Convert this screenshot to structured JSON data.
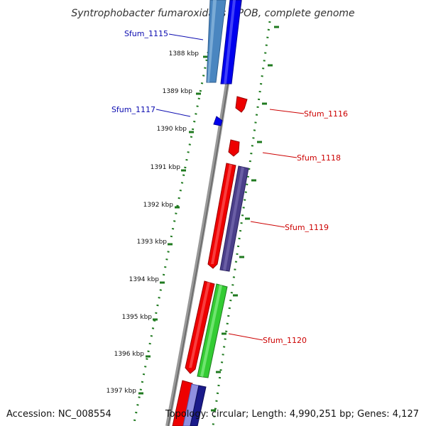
{
  "title": "Syntrophobacter fumaroxidans MPOB, complete genome",
  "footer": {
    "accession": "Accession: NC_008554",
    "summary": "Topology: circular; Length: 4,990,251 bp; Genes: 4,127"
  },
  "colors": {
    "backbone": "#888888",
    "ticks": "#1f7a1f",
    "label_forward": "#0b0bb0",
    "label_reverse": "#cc0000",
    "gene_red": "#ee0000",
    "gene_blue": "#0000ee",
    "gene_steelblue": "#4a86c0",
    "gene_slate": "#4b3f8a",
    "gene_green": "#33cc33",
    "gene_navy": "#1a1a8a"
  },
  "chart_data": {
    "type": "genome-map",
    "kbp_labels": [
      "1388 kbp",
      "1389 kbp",
      "1390 kbp",
      "1391 kbp",
      "1392 kbp",
      "1393 kbp",
      "1394 kbp",
      "1395 kbp",
      "1396 kbp",
      "1397 kbp"
    ],
    "gene_labels": [
      {
        "name": "Sfum_1115",
        "strand": "forward"
      },
      {
        "name": "Sfum_1116",
        "strand": "reverse"
      },
      {
        "name": "Sfum_1117",
        "strand": "forward"
      },
      {
        "name": "Sfum_1118",
        "strand": "reverse"
      },
      {
        "name": "Sfum_1119",
        "strand": "reverse"
      },
      {
        "name": "Sfum_1120",
        "strand": "reverse"
      }
    ]
  }
}
